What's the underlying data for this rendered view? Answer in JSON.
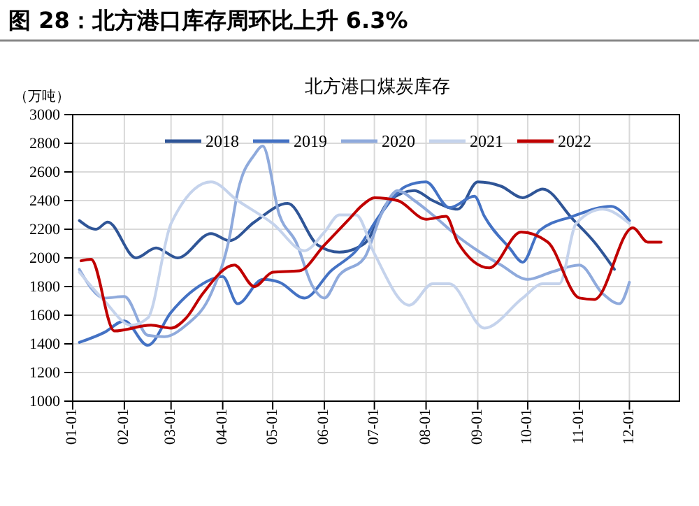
{
  "chart_data": {
    "type": "line",
    "title": "图 28：北方港口库存周环比上升 6.3%",
    "subtitle": "北方港口煤炭库存",
    "ylabel": "（万吨）",
    "xlim": [
      "--01-01",
      "--12-31"
    ],
    "xticks": [
      {
        "value": "--01-01",
        "label": "01-01"
      },
      {
        "value": "--02-01",
        "label": "02-01"
      },
      {
        "value": "--03-01",
        "label": "03-01"
      },
      {
        "value": "--04-01",
        "label": "04-01"
      },
      {
        "value": "--05-01",
        "label": "05-01"
      },
      {
        "value": "--06-01",
        "label": "06-01"
      },
      {
        "value": "--07-01",
        "label": "07-01"
      },
      {
        "value": "--08-01",
        "label": "08-01"
      },
      {
        "value": "--09-01",
        "label": "09-01"
      },
      {
        "value": "--10-01",
        "label": "10-01"
      },
      {
        "value": "--11-01",
        "label": "11-01"
      },
      {
        "value": "--12-01",
        "label": "12-01"
      }
    ],
    "ylim": [
      1000,
      3000
    ],
    "yticks": [
      1000,
      1200,
      1400,
      1600,
      1800,
      2000,
      2200,
      2400,
      2600,
      2800,
      3000
    ],
    "grid": true,
    "legend": "top",
    "line_style": "solid",
    "marker": "none",
    "series": [
      {
        "name": "2018",
        "color": "#2f5597",
        "x": [
          "--01-05",
          "--01-15",
          "--01-22",
          "--02-08",
          "--02-20",
          "--03-05",
          "--03-25",
          "--04-05",
          "--04-20",
          "--05-10",
          "--05-28",
          "--06-10",
          "--06-25",
          "--07-10",
          "--07-25",
          "--08-05",
          "--08-20",
          "--09-01",
          "--09-15",
          "--09-28",
          "--10-10",
          "--10-28",
          "--11-10",
          "--11-22"
        ],
        "values": [
          2260,
          2200,
          2250,
          2000,
          2070,
          2000,
          2170,
          2120,
          2250,
          2380,
          2090,
          2040,
          2100,
          2400,
          2470,
          2400,
          2340,
          2530,
          2500,
          2420,
          2480,
          2270,
          2110,
          1920
        ]
      },
      {
        "name": "2019",
        "color": "#4472c4",
        "x": [
          "--01-05",
          "--01-20",
          "--02-01",
          "--02-15",
          "--03-01",
          "--03-15",
          "--04-01",
          "--04-10",
          "--04-25",
          "--05-05",
          "--05-20",
          "--06-05",
          "--06-20",
          "--07-05",
          "--07-20",
          "--08-01",
          "--08-15",
          "--08-30",
          "--09-05",
          "--09-20",
          "--09-28",
          "--10-08",
          "--10-28",
          "--11-20",
          "--12-01"
        ],
        "values": [
          1410,
          1480,
          1560,
          1390,
          1620,
          1780,
          1870,
          1680,
          1850,
          1830,
          1720,
          1910,
          2050,
          2310,
          2500,
          2530,
          2350,
          2430,
          2290,
          2070,
          1970,
          2190,
          2290,
          2360,
          2260
        ]
      },
      {
        "name": "2020",
        "color": "#8faadc",
        "x": [
          "--01-05",
          "--01-20",
          "--02-01",
          "--02-15",
          "--02-25",
          "--03-10",
          "--03-25",
          "--04-05",
          "--04-10",
          "--04-20",
          "--04-25",
          "--05-05",
          "--05-15",
          "--05-25",
          "--06-01",
          "--06-10",
          "--06-25",
          "--07-05",
          "--07-15",
          "--07-25",
          "--08-05",
          "--08-20",
          "--09-01",
          "--09-15",
          "--10-01",
          "--10-15",
          "--11-01",
          "--11-15",
          "--11-25",
          "--12-01"
        ],
        "values": [
          1920,
          1720,
          1730,
          1460,
          1450,
          1530,
          1750,
          2140,
          2460,
          2720,
          2780,
          2300,
          2110,
          1800,
          1720,
          1880,
          2000,
          2300,
          2470,
          2400,
          2300,
          2150,
          2050,
          1950,
          1850,
          1900,
          1950,
          1750,
          1680,
          1830
        ]
      },
      {
        "name": "2021",
        "color": "#c5d3ec",
        "x": [
          "--01-05",
          "--01-20",
          "--02-05",
          "--02-15",
          "--03-01",
          "--03-25",
          "--04-10",
          "--05-01",
          "--05-20",
          "--06-01",
          "--06-10",
          "--06-20",
          "--07-01",
          "--07-22",
          "--08-05",
          "--08-15",
          "--09-05",
          "--09-28",
          "--10-10",
          "--10-20",
          "--10-30",
          "--11-15",
          "--12-01"
        ],
        "values": [
          1900,
          1700,
          1530,
          1580,
          2240,
          2530,
          2400,
          2240,
          2050,
          2180,
          2300,
          2300,
          2030,
          1670,
          1820,
          1820,
          1510,
          1720,
          1820,
          1820,
          2240,
          2340,
          2240
        ]
      },
      {
        "name": "2022",
        "color": "#c00000",
        "x": [
          "--01-06",
          "--01-12",
          "--01-26",
          "--02-17",
          "--03-01",
          "--03-10",
          "--03-20",
          "--04-08",
          "--04-20",
          "--05-01",
          "--05-17",
          "--06-01",
          "--06-15",
          "--06-24",
          "--07-01",
          "--07-15",
          "--08-01",
          "--08-13",
          "--08-20",
          "--09-08",
          "--09-27",
          "--10-13",
          "--11-01",
          "--11-10",
          "--12-03",
          "--12-12",
          "--12-20"
        ],
        "values": [
          1980,
          1990,
          1490,
          1530,
          1510,
          1580,
          1750,
          1950,
          1800,
          1900,
          1910,
          2090,
          2260,
          2370,
          2420,
          2400,
          2270,
          2290,
          2110,
          1930,
          2180,
          2110,
          1720,
          1710,
          2210,
          2110,
          2110
        ]
      }
    ]
  }
}
